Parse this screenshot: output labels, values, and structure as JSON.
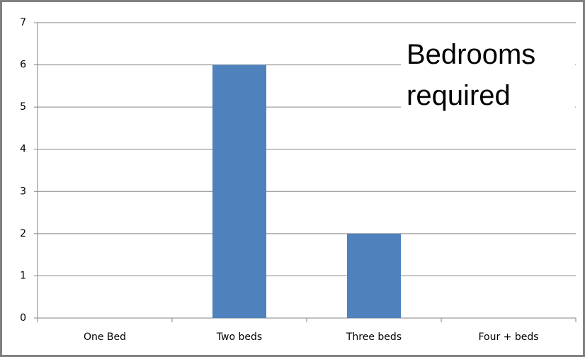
{
  "chart_data": {
    "type": "bar",
    "title": "Bedrooms required",
    "categories": [
      "One Bed",
      "Two beds",
      "Three beds",
      "Four + beds"
    ],
    "values": [
      0,
      6,
      2,
      0
    ],
    "color": "#4f81bd",
    "ylim": [
      0,
      7
    ],
    "yticks": [
      0,
      1,
      2,
      3,
      4,
      5,
      6,
      7
    ],
    "grid": true
  }
}
